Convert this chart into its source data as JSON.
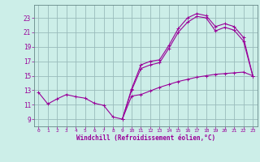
{
  "xlabel": "Windchill (Refroidissement éolien,°C)",
  "bg_color": "#cceee8",
  "line_color": "#990099",
  "grid_color": "#99bbbb",
  "border_color": "#668888",
  "x_ticks": [
    0,
    1,
    2,
    3,
    4,
    5,
    6,
    7,
    8,
    9,
    10,
    11,
    12,
    13,
    14,
    15,
    16,
    17,
    18,
    19,
    20,
    21,
    22,
    23
  ],
  "y_ticks": [
    9,
    11,
    13,
    15,
    17,
    19,
    21,
    23
  ],
  "xlim": [
    -0.5,
    23.5
  ],
  "ylim": [
    8.0,
    24.8
  ],
  "line1_x": [
    0,
    1,
    2,
    3,
    4,
    5,
    6,
    7,
    8,
    9,
    10,
    11,
    12,
    13,
    14,
    15,
    16,
    17,
    18,
    19,
    20,
    21,
    22,
    23
  ],
  "line1_y": [
    12.7,
    11.1,
    11.8,
    12.4,
    12.1,
    11.9,
    11.2,
    10.9,
    9.3,
    9.0,
    12.2,
    12.4,
    12.9,
    13.4,
    13.8,
    14.2,
    14.5,
    14.8,
    15.0,
    15.2,
    15.3,
    15.4,
    15.5,
    15.0
  ],
  "line2_x": [
    9,
    10,
    11,
    12,
    13,
    14,
    15,
    16,
    17,
    18,
    19,
    20,
    21,
    22,
    23
  ],
  "line2_y": [
    9.0,
    13.2,
    16.5,
    17.0,
    17.2,
    19.2,
    21.5,
    23.0,
    23.6,
    23.3,
    21.8,
    22.2,
    21.8,
    20.3,
    15.0
  ],
  "line3_x": [
    9,
    10,
    11,
    12,
    13,
    14,
    15,
    16,
    17,
    18,
    19,
    20,
    21,
    22,
    23
  ],
  "line3_y": [
    9.0,
    13.0,
    16.0,
    16.5,
    16.8,
    18.8,
    21.0,
    22.4,
    23.2,
    23.0,
    21.2,
    21.7,
    21.3,
    19.8,
    15.0
  ]
}
